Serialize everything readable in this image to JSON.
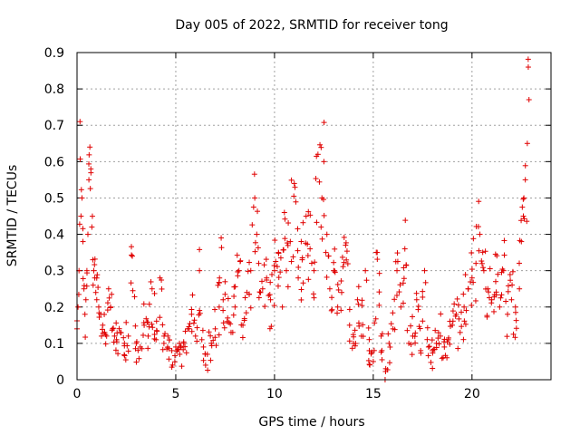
{
  "chart_data": {
    "type": "scatter",
    "title": "Day 005 of 2022, SRMTID for receiver tong",
    "xlabel": "GPS time / hours",
    "ylabel": "SRMTID / TECUs",
    "xlim": [
      0,
      24
    ],
    "ylim": [
      0,
      0.9
    ],
    "xticks": [
      0,
      5,
      10,
      15,
      20
    ],
    "xtick_labels": [
      "0",
      "5",
      "10",
      "15",
      "20"
    ],
    "yticks": [
      0,
      0.1,
      0.2,
      0.3,
      0.4,
      0.5,
      0.6,
      0.7,
      0.8,
      0.9
    ],
    "ytick_labels": [
      "0",
      "0.1",
      "0.2",
      "0.3",
      "0.4",
      "0.5",
      "0.6",
      "0.7",
      "0.8",
      "0.9"
    ],
    "grid": true,
    "marker": "+",
    "color": "#e00000",
    "series": [
      {
        "name": "SRMTID",
        "x": [
          0.0,
          0.05,
          0.1,
          0.15,
          0.2,
          0.25,
          0.3,
          0.35,
          0.4,
          0.45,
          0.5,
          0.55,
          0.6,
          0.65,
          0.7,
          0.75,
          0.8,
          0.85,
          0.9,
          0.95,
          1.0,
          1.1,
          1.2,
          1.3,
          1.4,
          1.5,
          1.6,
          1.7,
          1.8,
          1.9,
          2.0,
          2.2,
          2.4,
          2.6,
          2.8,
          3.0,
          3.2,
          3.4,
          3.6,
          3.8,
          4.0,
          4.2,
          4.4,
          4.6,
          4.8,
          5.0,
          5.2,
          5.4,
          5.6,
          5.8,
          6.0,
          6.2,
          6.4,
          6.6,
          6.8,
          7.0,
          7.2,
          7.3,
          7.4,
          7.6,
          7.8,
          8.0,
          8.2,
          8.4,
          8.6,
          8.8,
          9.0,
          9.1,
          9.2,
          9.4,
          9.6,
          9.8,
          10.0,
          10.2,
          10.4,
          10.5,
          10.6,
          10.8,
          11.0,
          11.2,
          11.4,
          11.6,
          11.8,
          12.0,
          12.2,
          12.4,
          12.5,
          12.6,
          12.8,
          13.0,
          13.2,
          13.4,
          13.6,
          13.8,
          14.0,
          14.2,
          14.4,
          14.6,
          14.8,
          15.0,
          15.2,
          15.4,
          15.6,
          15.8,
          16.0,
          16.2,
          16.4,
          16.6,
          16.8,
          17.0,
          17.2,
          17.4,
          17.6,
          17.8,
          18.0,
          18.2,
          18.4,
          18.6,
          18.8,
          19.0,
          19.2,
          19.4,
          19.6,
          19.8,
          20.0,
          20.2,
          20.4,
          20.6,
          20.8,
          21.0,
          21.2,
          21.4,
          21.6,
          21.8,
          22.0,
          22.2,
          22.4,
          22.5,
          22.6,
          22.7,
          22.8,
          22.85
        ],
        "y": [
          0.14,
          0.2,
          0.3,
          0.71,
          0.45,
          0.5,
          0.38,
          0.25,
          0.18,
          0.22,
          0.3,
          0.4,
          0.55,
          0.64,
          0.58,
          0.42,
          0.33,
          0.3,
          0.28,
          0.24,
          0.22,
          0.2,
          0.18,
          0.15,
          0.13,
          0.12,
          0.25,
          0.2,
          0.14,
          0.12,
          0.11,
          0.13,
          0.1,
          0.12,
          0.34,
          0.1,
          0.09,
          0.15,
          0.12,
          0.25,
          0.11,
          0.28,
          0.1,
          0.12,
          0.08,
          0.09,
          0.07,
          0.1,
          0.14,
          0.18,
          0.12,
          0.3,
          0.09,
          0.07,
          0.1,
          0.14,
          0.2,
          0.39,
          0.22,
          0.16,
          0.13,
          0.2,
          0.3,
          0.15,
          0.24,
          0.3,
          0.5,
          0.4,
          0.32,
          0.25,
          0.28,
          0.22,
          0.3,
          0.35,
          0.2,
          0.46,
          0.3,
          0.38,
          0.54,
          0.28,
          0.33,
          0.45,
          0.36,
          0.3,
          0.62,
          0.5,
          0.6,
          0.35,
          0.25,
          0.3,
          0.2,
          0.24,
          0.37,
          0.15,
          0.1,
          0.22,
          0.12,
          0.3,
          0.08,
          0.05,
          0.35,
          0.12,
          0.0,
          0.1,
          0.14,
          0.3,
          0.2,
          0.36,
          0.1,
          0.12,
          0.22,
          0.08,
          0.3,
          0.09,
          0.08,
          0.1,
          0.12,
          0.09,
          0.11,
          0.15,
          0.18,
          0.13,
          0.2,
          0.25,
          0.28,
          0.32,
          0.4,
          0.3,
          0.25,
          0.22,
          0.27,
          0.2,
          0.3,
          0.18,
          0.22,
          0.2,
          0.25,
          0.38,
          0.45,
          0.55,
          0.65,
          0.86
        ]
      }
    ]
  }
}
